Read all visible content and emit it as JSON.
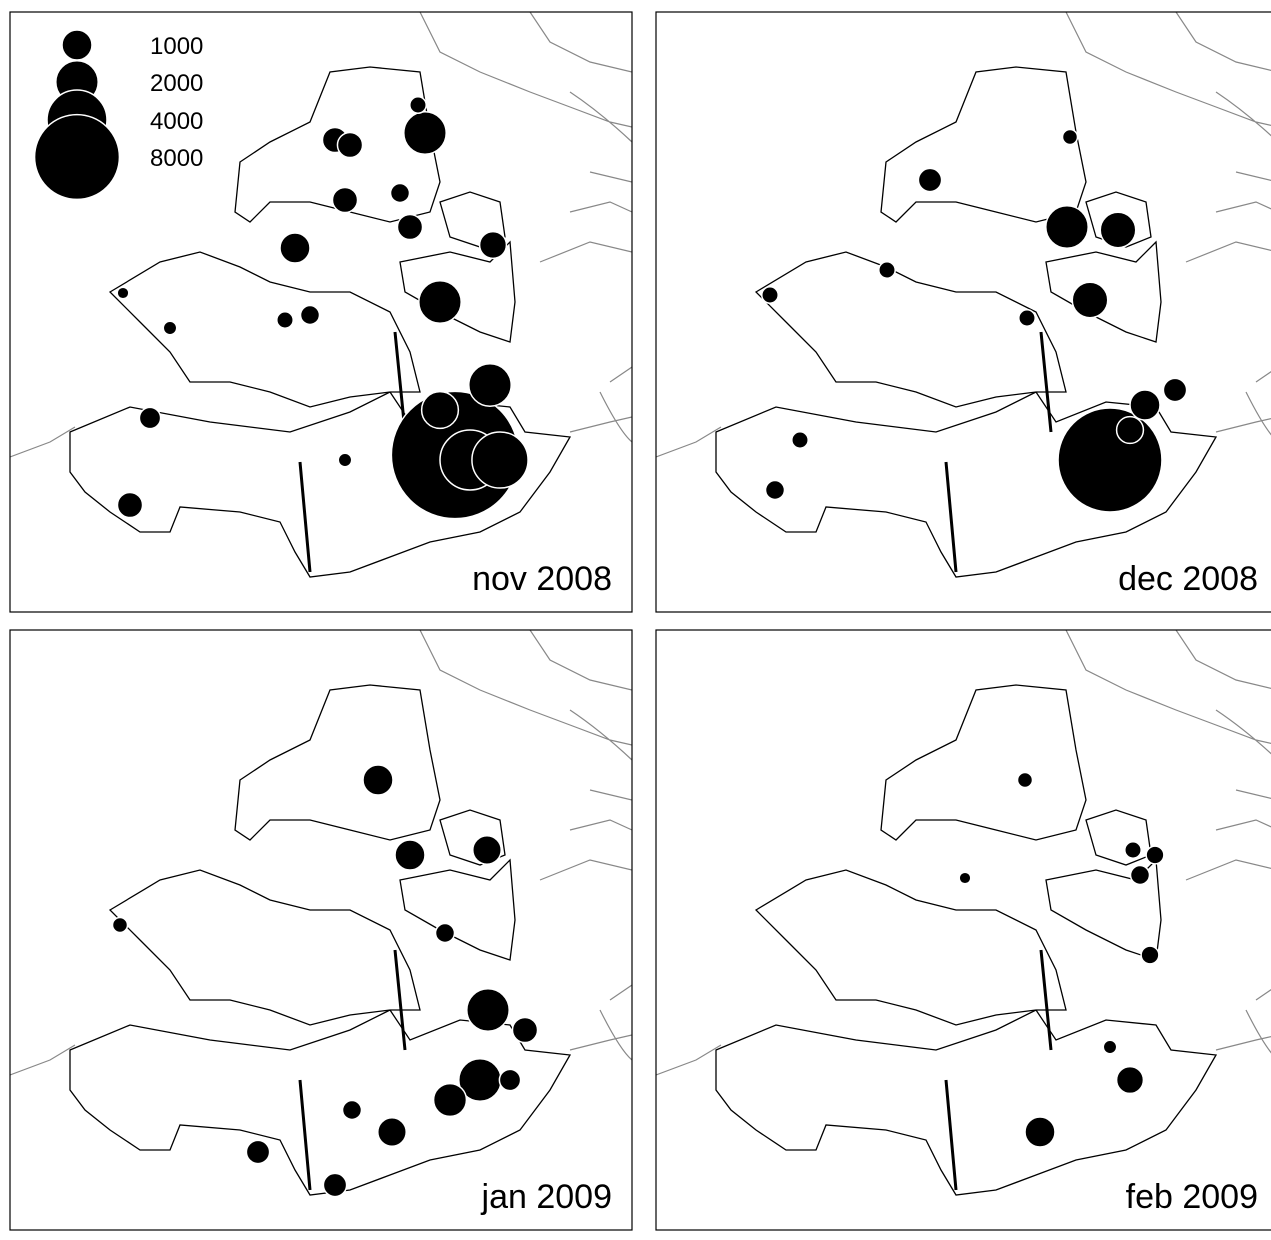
{
  "legend": {
    "values": [
      1000,
      2000,
      4000,
      8000
    ]
  },
  "chart_data": [
    {
      "type": "bubble",
      "title": "nov 2008",
      "xlim": [
        0,
        622
      ],
      "ylim": [
        600,
        0
      ],
      "x": [
        445,
        480,
        460,
        490,
        415,
        285,
        430,
        335,
        325,
        340,
        390,
        400,
        483,
        120,
        140,
        300,
        275,
        160,
        430,
        335,
        408,
        113
      ],
      "y": [
        443,
        373,
        448,
        448,
        121,
        236,
        290,
        188,
        128,
        133,
        181,
        215,
        233,
        493,
        406,
        303,
        308,
        316,
        398,
        448,
        93,
        281
      ],
      "sizes": [
        18000,
        2000,
        4000,
        3500,
        2000,
        1000,
        2000,
        700,
        700,
        700,
        400,
        700,
        800,
        700,
        500,
        400,
        300,
        200,
        1500,
        200,
        300,
        150
      ]
    },
    {
      "type": "bubble",
      "title": "dec 2008",
      "xlim": [
        0,
        622
      ],
      "ylim": [
        600,
        0
      ],
      "x": [
        454,
        411,
        462,
        434,
        489,
        519,
        274,
        119,
        114,
        144,
        414,
        231,
        371,
        474
      ],
      "y": [
        448,
        215,
        218,
        288,
        393,
        378,
        168,
        478,
        283,
        428,
        125,
        258,
        306,
        418
      ],
      "sizes": [
        12000,
        2000,
        1400,
        1400,
        1000,
        600,
        600,
        400,
        300,
        300,
        250,
        300,
        300,
        800
      ]
    },
    {
      "type": "bubble",
      "title": "jan 2009",
      "xlim": [
        0,
        622
      ],
      "ylim": [
        600,
        0
      ],
      "x": [
        478,
        470,
        440,
        400,
        368,
        477,
        382,
        325,
        248,
        342,
        110,
        435,
        515,
        500
      ],
      "y": [
        380,
        450,
        470,
        225,
        150,
        220,
        502,
        555,
        522,
        480,
        295,
        303,
        400,
        450
      ],
      "sizes": [
        2000,
        2000,
        1200,
        1000,
        1000,
        900,
        900,
        600,
        600,
        400,
        250,
        400,
        700,
        500
      ]
    },
    {
      "type": "bubble",
      "title": "feb 2009",
      "xlim": [
        0,
        622
      ],
      "ylim": [
        600,
        0
      ],
      "x": [
        384,
        474,
        494,
        484,
        499,
        477,
        369,
        454,
        309
      ],
      "y": [
        502,
        450,
        325,
        245,
        225,
        220,
        150,
        417,
        248
      ],
      "sizes": [
        1000,
        800,
        350,
        400,
        350,
        300,
        250,
        200,
        150
      ]
    }
  ]
}
